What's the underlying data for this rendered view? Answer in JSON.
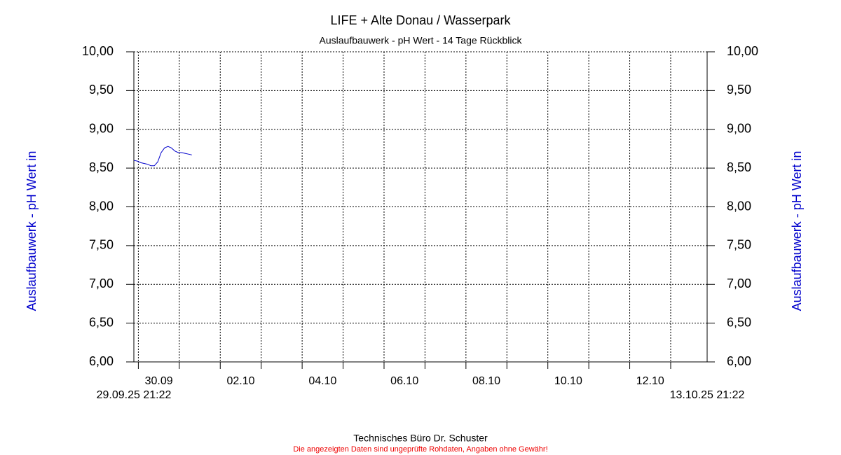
{
  "chart_data": {
    "type": "line",
    "title": "LIFE + Alte Donau / Wasserpark",
    "subtitle": "Auslaufbauwerk - pH Wert - 14 Tage Rückblick",
    "y_label": "Auslaufbauwerk - pH Wert in",
    "ylim": [
      6,
      10
    ],
    "yticks": [
      {
        "value": 6,
        "label": "6,00"
      },
      {
        "value": 6.5,
        "label": "6,50"
      },
      {
        "value": 7,
        "label": "7,00"
      },
      {
        "value": 7.5,
        "label": "7,50"
      },
      {
        "value": 8,
        "label": "8,00"
      },
      {
        "value": 8.5,
        "label": "8,50"
      },
      {
        "value": 9,
        "label": "9,00"
      },
      {
        "value": 9.5,
        "label": "9,50"
      },
      {
        "value": 10,
        "label": "10,00"
      }
    ],
    "xlim": [
      {
        "value": "2025-09-29 21:22",
        "label": "29.09.25 21:22"
      },
      {
        "value": "2025-10-13 21:22",
        "label": "13.10.25 21:22"
      }
    ],
    "xticks": [
      {
        "value": "2025-09-30 12:00",
        "label": "30.09"
      },
      {
        "value": "2025-10-02 12:00",
        "label": "02.10"
      },
      {
        "value": "2025-10-04 12:00",
        "label": "04.10"
      },
      {
        "value": "2025-10-06 12:00",
        "label": "06.10"
      },
      {
        "value": "2025-10-08 12:00",
        "label": "08.10"
      },
      {
        "value": "2025-10-10 12:00",
        "label": "10.10"
      },
      {
        "value": "2025-10-12 12:00",
        "label": "12.10"
      }
    ],
    "xgrid": [
      "2025-09-30 00:00",
      "2025-10-01 00:00",
      "2025-10-02 00:00",
      "2025-10-03 00:00",
      "2025-10-04 00:00",
      "2025-10-05 00:00",
      "2025-10-06 00:00",
      "2025-10-07 00:00",
      "2025-10-08 00:00",
      "2025-10-09 00:00",
      "2025-10-10 00:00",
      "2025-10-11 00:00",
      "2025-10-12 00:00",
      "2025-10-13 00:00"
    ],
    "grid": true,
    "color": "#0000cc",
    "x": [
      "2025-09-29 21:22",
      "2025-09-29 23:22",
      "2025-09-30 01:22",
      "2025-09-30 03:22",
      "2025-09-30 05:22",
      "2025-09-30 07:22",
      "2025-09-30 09:22",
      "2025-09-30 11:22",
      "2025-09-30 13:22",
      "2025-09-30 15:22",
      "2025-09-30 17:22",
      "2025-09-30 19:22",
      "2025-09-30 21:22",
      "2025-09-30 23:22",
      "2025-10-01 01:22",
      "2025-10-01 03:22",
      "2025-10-01 05:22",
      "2025-10-01 07:22"
    ],
    "values": [
      8.6,
      8.59,
      8.57,
      8.56,
      8.55,
      8.53,
      8.53,
      8.58,
      8.7,
      8.76,
      8.78,
      8.76,
      8.72,
      8.7,
      8.7,
      8.69,
      8.68,
      8.67
    ]
  },
  "footer": {
    "company": "Technisches Büro Dr. Schuster",
    "disclaimer": "Die angezeigten Daten sind ungeprüfte Rohdaten, Angaben ohne Gewähr!"
  }
}
